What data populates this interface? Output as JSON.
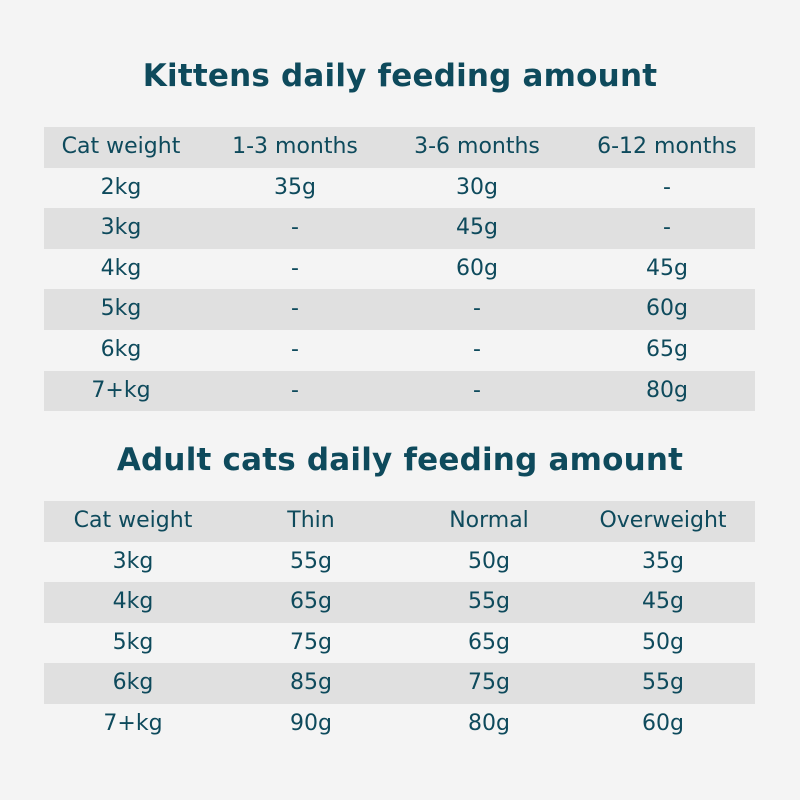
{
  "kittens": {
    "title": "Kittens daily feeding amount",
    "headers": [
      "Cat weight",
      "1-3 months",
      "3-6 months",
      "6-12 months"
    ],
    "rows": [
      [
        "2kg",
        "35g",
        "30g",
        "-"
      ],
      [
        "3kg",
        "-",
        "45g",
        "-"
      ],
      [
        "4kg",
        "-",
        "60g",
        "45g"
      ],
      [
        "5kg",
        "-",
        "-",
        "60g"
      ],
      [
        "6kg",
        "-",
        "-",
        "65g"
      ],
      [
        "7+kg",
        "-",
        "-",
        "80g"
      ]
    ]
  },
  "adults": {
    "title": "Adult cats daily feeding amount",
    "headers": [
      "Cat weight",
      "Thin",
      "Normal",
      "Overweight"
    ],
    "rows": [
      [
        "3kg",
        "55g",
        "50g",
        "35g"
      ],
      [
        "4kg",
        "65g",
        "55g",
        "45g"
      ],
      [
        "5kg",
        "75g",
        "65g",
        "50g"
      ],
      [
        "6kg",
        "85g",
        "75g",
        "55g"
      ],
      [
        "7+kg",
        "90g",
        "80g",
        "60g"
      ]
    ]
  }
}
